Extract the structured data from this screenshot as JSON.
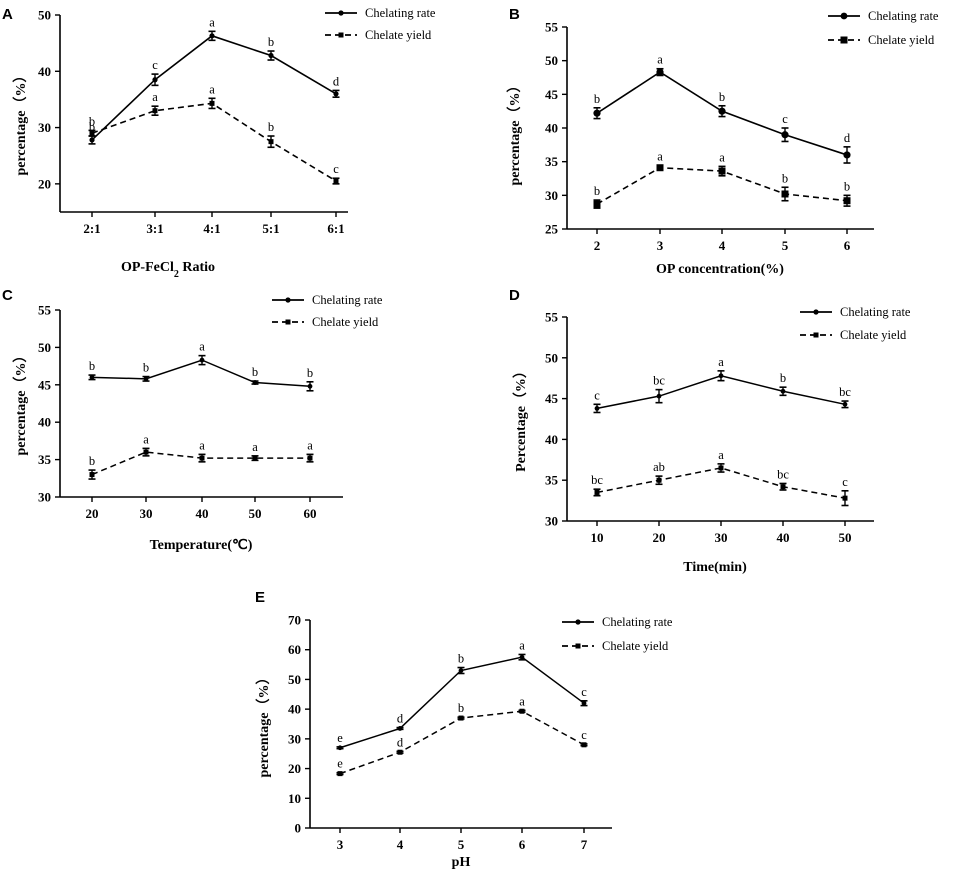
{
  "chart_data": [
    {
      "type": "line",
      "panel": "A",
      "categories": [
        "2:1",
        "3:1",
        "4:1",
        "5:1",
        "6:1"
      ],
      "xlabel": "OP-FeCl2 Ratio",
      "ylabel": "percentage（%）",
      "ylim": [
        15,
        50
      ],
      "yticks": [
        20,
        30,
        40,
        50
      ],
      "legend_position": "top-right",
      "series": [
        {
          "name": "Chelating rate",
          "style": "solid",
          "marker": "circle",
          "values": [
            27.8,
            38.5,
            46.3,
            42.8,
            36.0
          ],
          "errors": [
            0.7,
            1.0,
            0.8,
            0.8,
            0.6
          ],
          "letters": [
            "b",
            "c",
            "a",
            "b",
            "d"
          ]
        },
        {
          "name": "Chelate yield",
          "style": "dashed",
          "marker": "square",
          "values": [
            29.0,
            33.0,
            34.3,
            27.5,
            20.5
          ],
          "errors": [
            0.5,
            0.8,
            0.9,
            1.0,
            0.5
          ],
          "letters": [
            "b",
            "a",
            "a",
            "b",
            "c"
          ]
        }
      ]
    },
    {
      "type": "line",
      "panel": "B",
      "categories": [
        "2",
        "3",
        "4",
        "5",
        "6"
      ],
      "xlabel": "OP concentration(%)",
      "ylabel": "percentage（%）",
      "ylim": [
        25,
        55
      ],
      "yticks": [
        25,
        30,
        35,
        40,
        45,
        50,
        55
      ],
      "legend_position": "top-right",
      "series": [
        {
          "name": "Chelating rate",
          "style": "solid",
          "marker": "circle",
          "values": [
            42.2,
            48.3,
            42.5,
            39.0,
            36.0
          ],
          "errors": [
            0.8,
            0.5,
            0.8,
            1.0,
            1.2
          ],
          "letters": [
            "b",
            "a",
            "b",
            "c",
            "d"
          ]
        },
        {
          "name": "Chelate yield",
          "style": "dashed",
          "marker": "square",
          "values": [
            28.7,
            34.1,
            33.6,
            30.2,
            29.2
          ],
          "errors": [
            0.6,
            0.3,
            0.7,
            1.0,
            0.8
          ],
          "letters": [
            "b",
            "a",
            "a",
            "b",
            "b"
          ]
        }
      ]
    },
    {
      "type": "line",
      "panel": "C",
      "categories": [
        "20",
        "30",
        "40",
        "50",
        "60"
      ],
      "xlabel": "Temperature(℃)",
      "ylabel": "percentage（%）",
      "ylim": [
        30,
        55
      ],
      "yticks": [
        30,
        35,
        40,
        45,
        50,
        55
      ],
      "legend_position": "top-right",
      "series": [
        {
          "name": "Chelating rate",
          "style": "solid",
          "marker": "circle",
          "values": [
            46.0,
            45.8,
            48.3,
            45.3,
            44.8
          ],
          "errors": [
            0.3,
            0.3,
            0.6,
            0.2,
            0.6
          ],
          "letters": [
            "b",
            "b",
            "a",
            "b",
            "b"
          ]
        },
        {
          "name": "Chelate yield",
          "style": "dashed",
          "marker": "square",
          "values": [
            33.0,
            36.0,
            35.2,
            35.2,
            35.2
          ],
          "errors": [
            0.6,
            0.5,
            0.5,
            0.3,
            0.5
          ],
          "letters": [
            "b",
            "a",
            "a",
            "a",
            "a"
          ]
        }
      ]
    },
    {
      "type": "line",
      "panel": "D",
      "categories": [
        "10",
        "20",
        "30",
        "40",
        "50"
      ],
      "xlabel": "Time(min)",
      "ylabel": "Percentage（%）",
      "ylim": [
        30,
        55
      ],
      "yticks": [
        30,
        35,
        40,
        45,
        50,
        55
      ],
      "legend_position": "top-right",
      "series": [
        {
          "name": "Chelating rate",
          "style": "solid",
          "marker": "circle",
          "values": [
            43.8,
            45.3,
            47.8,
            45.9,
            44.3
          ],
          "errors": [
            0.5,
            0.8,
            0.6,
            0.5,
            0.4
          ],
          "letters": [
            "c",
            "bc",
            "a",
            "b",
            "bc"
          ]
        },
        {
          "name": "Chelate yield",
          "style": "dashed",
          "marker": "square",
          "values": [
            33.5,
            35.0,
            36.5,
            34.2,
            32.8
          ],
          "errors": [
            0.4,
            0.5,
            0.5,
            0.4,
            0.9
          ],
          "letters": [
            "bc",
            "ab",
            "a",
            "bc",
            "c"
          ]
        }
      ]
    },
    {
      "type": "line",
      "panel": "E",
      "categories": [
        "3",
        "4",
        "5",
        "6",
        "7"
      ],
      "xlabel": "pH",
      "ylabel": "percentage（%）",
      "ylim": [
        0,
        70
      ],
      "yticks": [
        0,
        10,
        20,
        30,
        40,
        50,
        60,
        70
      ],
      "legend_position": "top-right",
      "series": [
        {
          "name": "Chelating rate",
          "style": "solid",
          "marker": "circle",
          "values": [
            27.0,
            33.5,
            53.0,
            57.5,
            42.0
          ],
          "errors": [
            0.3,
            0.3,
            1.0,
            0.9,
            0.8
          ],
          "letters": [
            "e",
            "d",
            "b",
            "a",
            "c"
          ]
        },
        {
          "name": "Chelate yield",
          "style": "dashed",
          "marker": "square",
          "values": [
            18.3,
            25.5,
            37.0,
            39.3,
            28.0
          ],
          "errors": [
            0.3,
            0.3,
            0.3,
            0.3,
            0.3
          ],
          "letters": [
            "e",
            "d",
            "b",
            "a",
            "c"
          ]
        }
      ]
    }
  ]
}
